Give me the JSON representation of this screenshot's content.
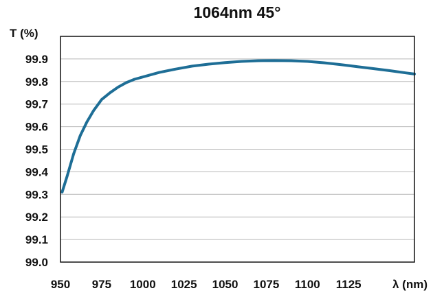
{
  "chart_data": {
    "type": "line",
    "title": "1064nm 45°",
    "ylabel": "T (%)",
    "xlabel": "λ (nm)",
    "xlim": [
      950,
      1165
    ],
    "ylim": [
      99.0,
      100.0
    ],
    "x_ticks": [
      950,
      975,
      1000,
      1025,
      1050,
      1075,
      1100,
      1125
    ],
    "x_tick_labels": [
      "950",
      "975",
      "1000",
      "1025",
      "1050",
      "1075",
      "1100",
      "1125"
    ],
    "y_ticks": [
      99.0,
      99.1,
      99.2,
      99.3,
      99.4,
      99.5,
      99.6,
      99.7,
      99.8,
      99.9
    ],
    "y_tick_labels": [
      "99.0",
      "99.1",
      "99.2",
      "99.3",
      "99.4",
      "99.5",
      "99.6",
      "99.7",
      "99.8",
      "99.9"
    ],
    "grid": true,
    "line_color": "#1e6e96",
    "series": [
      {
        "x": [
          951,
          954,
          958,
          962,
          966,
          970,
          975,
          980,
          985,
          990,
          995,
          1000,
          1010,
          1020,
          1030,
          1040,
          1050,
          1060,
          1070,
          1080,
          1090,
          1100,
          1110,
          1120,
          1130,
          1140,
          1150,
          1160,
          1165
        ],
        "y": [
          99.31,
          99.38,
          99.48,
          99.56,
          99.62,
          99.67,
          99.72,
          99.75,
          99.775,
          99.795,
          99.81,
          99.82,
          99.84,
          99.855,
          99.868,
          99.877,
          99.884,
          99.889,
          99.892,
          99.893,
          99.892,
          99.889,
          99.883,
          99.875,
          99.866,
          99.857,
          99.848,
          99.838,
          99.833
        ]
      }
    ]
  }
}
